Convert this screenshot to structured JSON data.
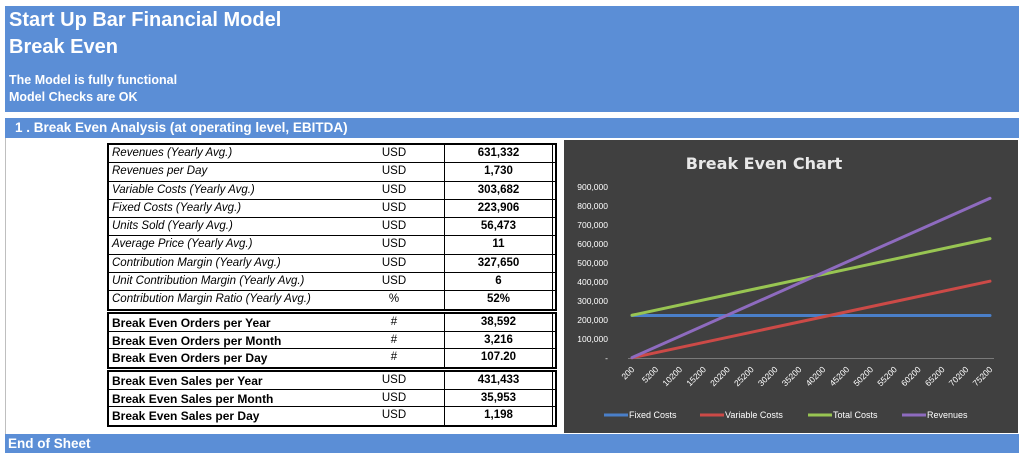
{
  "header": {
    "title": "Start Up Bar Financial Model",
    "subtitle": "Break Even",
    "note1": "The Model is fully functional",
    "note2": "Model Checks are OK"
  },
  "section": {
    "title": "1 . Break Even Analysis (at operating level, EBITDA)"
  },
  "table1": [
    {
      "label": "Revenues (Yearly Avg.)",
      "unit": "USD",
      "value": "631,332"
    },
    {
      "label": "Revenues per Day",
      "unit": "USD",
      "value": "1,730"
    },
    {
      "label": "Variable Costs (Yearly Avg.)",
      "unit": "USD",
      "value": "303,682"
    },
    {
      "label": "Fixed Costs (Yearly Avg.)",
      "unit": "USD",
      "value": "223,906"
    },
    {
      "label": "Units Sold (Yearly Avg.)",
      "unit": "USD",
      "value": "56,473"
    },
    {
      "label": "Average Price (Yearly Avg.)",
      "unit": "USD",
      "value": "11"
    },
    {
      "label": "Contribution Margin (Yearly Avg.)",
      "unit": "USD",
      "value": "327,650"
    },
    {
      "label": "Unit Contribution Margin (Yearly Avg.)",
      "unit": "USD",
      "value": "6"
    },
    {
      "label": "Contribution Margin Ratio (Yearly Avg.)",
      "unit": "%",
      "value": "52%"
    }
  ],
  "table2": [
    {
      "label": "Break Even Orders per Year",
      "unit": "#",
      "value": "38,592"
    },
    {
      "label": "Break Even Orders per Month",
      "unit": "#",
      "value": "3,216"
    },
    {
      "label": "Break Even Orders per Day",
      "unit": "#",
      "value": "107.20"
    }
  ],
  "table3": [
    {
      "label": "Break Even Sales per Year",
      "unit": "USD",
      "value": "431,433"
    },
    {
      "label": "Break Even Sales per Month",
      "unit": "USD",
      "value": "35,953"
    },
    {
      "label": "Break Even Sales per Day",
      "unit": "USD",
      "value": "1,198"
    }
  ],
  "footer": {
    "text": "End of Sheet"
  },
  "chart_data": {
    "type": "line",
    "title": "Break Even Chart",
    "xlabel": "",
    "ylabel": "",
    "x": [
      200,
      5200,
      10200,
      15200,
      20200,
      25200,
      30200,
      35200,
      40200,
      45200,
      50200,
      55200,
      60200,
      65200,
      70200,
      75200
    ],
    "ylim": [
      0,
      900000
    ],
    "y_ticks": [
      0,
      100000,
      200000,
      300000,
      400000,
      500000,
      600000,
      700000,
      800000,
      900000
    ],
    "y_tick_labels": [
      "-",
      "100,000",
      "200,000",
      "300,000",
      "400,000",
      "500,000",
      "600,000",
      "700,000",
      "800,000",
      "900,000"
    ],
    "grid": false,
    "legend_position": "bottom",
    "background": "#404040",
    "series": [
      {
        "name": "Fixed Costs",
        "color": "#4a7fc9",
        "start": 223906,
        "end": 223906
      },
      {
        "name": "Variable Costs",
        "color": "#cc4a47",
        "start": 1076,
        "end": 404412
      },
      {
        "name": "Total Costs",
        "color": "#98c552",
        "start": 224982,
        "end": 628318
      },
      {
        "name": "Revenues",
        "color": "#8e6bbf",
        "start": 2236,
        "end": 840683
      }
    ]
  }
}
